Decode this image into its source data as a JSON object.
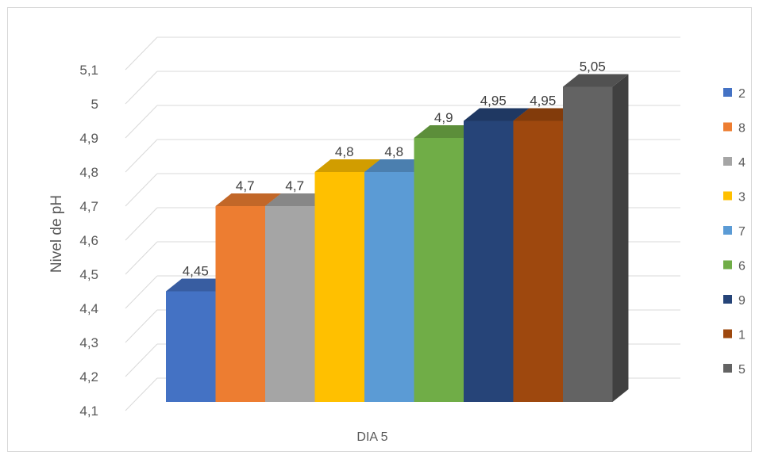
{
  "chart_data": {
    "type": "bar",
    "style": "3d-clustered-column",
    "xlabel": "DIA 5",
    "ylabel": "Nivel de pH",
    "ylim": [
      4.1,
      5.15
    ],
    "yticks": [
      4.1,
      4.2,
      4.3,
      4.4,
      4.5,
      4.6,
      4.7,
      4.8,
      4.9,
      5,
      5.1
    ],
    "ytick_labels": [
      "4,1",
      "4,2",
      "4,3",
      "4,4",
      "4,5",
      "4,6",
      "4,7",
      "4,8",
      "4,9",
      "5",
      "5,1"
    ],
    "grid": true,
    "legend_position": "right",
    "series": [
      {
        "name": "2",
        "value": 4.45,
        "label": "4,45",
        "color": "#4472C4"
      },
      {
        "name": "8",
        "value": 4.7,
        "label": "4,7",
        "color": "#ED7D31"
      },
      {
        "name": "4",
        "value": 4.7,
        "label": "4,7",
        "color": "#A5A5A5"
      },
      {
        "name": "3",
        "value": 4.8,
        "label": "4,8",
        "color": "#FFC000"
      },
      {
        "name": "7",
        "value": 4.8,
        "label": "4,8",
        "color": "#5B9BD5"
      },
      {
        "name": "6",
        "value": 4.9,
        "label": "4,9",
        "color": "#70AD47"
      },
      {
        "name": "9",
        "value": 4.95,
        "label": "4,95",
        "color": "#264478"
      },
      {
        "name": "1",
        "value": 4.95,
        "label": "4,95",
        "color": "#9E480E"
      },
      {
        "name": "5",
        "value": 5.05,
        "label": "5,05",
        "color": "#636363"
      }
    ]
  }
}
